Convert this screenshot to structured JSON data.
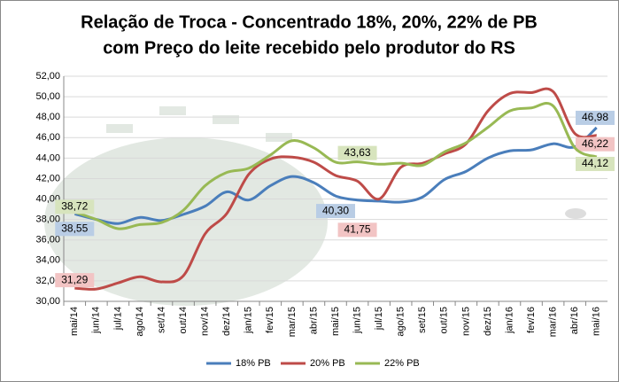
{
  "chart_data": {
    "type": "line",
    "title": [
      "Relação de Troca - Concentrado 18%, 20%, 22% de PB",
      "com Preço do leite recebido pelo produtor do RS"
    ],
    "categories": [
      "mai/14",
      "jun/14",
      "jul/14",
      "ago/14",
      "set/14",
      "out/14",
      "nov/14",
      "dez/14",
      "jan/15",
      "fev/15",
      "mar/15",
      "abr/15",
      "mai/15",
      "jun/15",
      "jul/15",
      "ago/15",
      "set/15",
      "out/15",
      "nov/15",
      "dez/15",
      "jan/16",
      "fev/16",
      "mar/16",
      "abr/16",
      "mai/16"
    ],
    "series": [
      {
        "name": "18% PB",
        "color": "#4a7ebb",
        "values": [
          38.55,
          38.0,
          37.6,
          38.2,
          37.9,
          38.5,
          39.3,
          40.7,
          39.9,
          41.3,
          42.2,
          41.6,
          40.3,
          39.9,
          39.8,
          39.7,
          40.2,
          41.9,
          42.7,
          44.0,
          44.7,
          44.8,
          45.4,
          45.1,
          46.98
        ],
        "value_labels": [
          "38,55",
          null,
          null,
          null,
          null,
          null,
          null,
          null,
          null,
          null,
          null,
          null,
          "40,30",
          null,
          null,
          null,
          null,
          null,
          null,
          null,
          null,
          null,
          null,
          null,
          "46,98"
        ]
      },
      {
        "name": "20% PB",
        "color": "#be4b48",
        "values": [
          31.29,
          31.2,
          31.8,
          32.4,
          31.9,
          32.5,
          36.6,
          38.6,
          42.4,
          43.9,
          44.1,
          43.6,
          42.3,
          41.75,
          40.0,
          43.1,
          43.5,
          44.4,
          45.4,
          48.6,
          50.3,
          50.4,
          50.5,
          46.4,
          46.22
        ],
        "value_labels": [
          "31,29",
          null,
          null,
          null,
          null,
          null,
          null,
          null,
          null,
          null,
          null,
          null,
          null,
          "41,75",
          null,
          null,
          null,
          null,
          null,
          null,
          null,
          null,
          null,
          null,
          "46,22"
        ]
      },
      {
        "name": "22% PB",
        "color": "#98b954",
        "values": [
          38.72,
          38.0,
          37.1,
          37.5,
          37.7,
          38.9,
          41.3,
          42.6,
          43.0,
          44.3,
          45.7,
          45.0,
          43.6,
          43.63,
          43.4,
          43.5,
          43.3,
          44.6,
          45.5,
          47.0,
          48.6,
          48.9,
          49.1,
          45.0,
          44.12
        ],
        "value_labels": [
          "38,72",
          null,
          null,
          null,
          null,
          null,
          null,
          null,
          null,
          null,
          null,
          null,
          null,
          "43,63",
          null,
          null,
          null,
          null,
          null,
          null,
          null,
          null,
          null,
          null,
          "44,12"
        ]
      }
    ],
    "ylim": [
      30,
      52
    ],
    "yticks": [
      {
        "value": 30,
        "label": "30,00"
      },
      {
        "value": 32,
        "label": "32,00"
      },
      {
        "value": 34,
        "label": "34,00"
      },
      {
        "value": 36,
        "label": "36,00"
      },
      {
        "value": 38,
        "label": "38,00"
      },
      {
        "value": 40,
        "label": "40,00"
      },
      {
        "value": 42,
        "label": "42,00"
      },
      {
        "value": 44,
        "label": "44,00"
      },
      {
        "value": 46,
        "label": "46,00"
      },
      {
        "value": 48,
        "label": "48,00"
      },
      {
        "value": 50,
        "label": "50,00"
      },
      {
        "value": 52,
        "label": "52,00"
      }
    ],
    "grid": true,
    "legend": "bottom"
  }
}
